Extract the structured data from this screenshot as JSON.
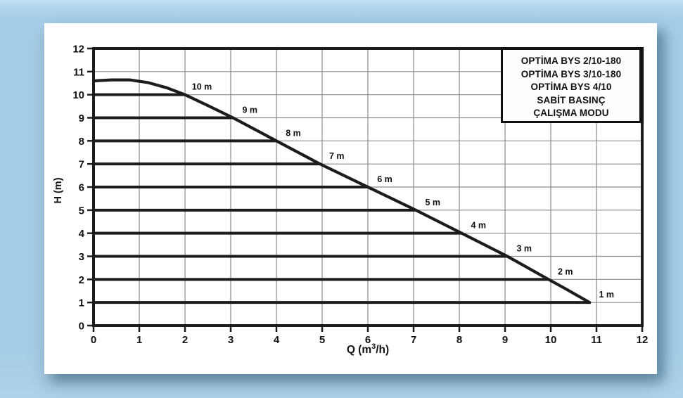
{
  "page": {
    "background_color": "#a6cde7",
    "card_color": "#ffffff"
  },
  "chart_data": {
    "type": "line",
    "title": "",
    "xlabel": "Q (m³/h)",
    "xlabel_parts": {
      "pre": "Q (m",
      "sup": "3",
      "post": "/h)"
    },
    "ylabel": "H (m)",
    "xlim": [
      0,
      12
    ],
    "ylim": [
      0,
      12
    ],
    "x_ticks": [
      0,
      1,
      2,
      3,
      4,
      5,
      6,
      7,
      8,
      9,
      10,
      11,
      12
    ],
    "y_ticks": [
      0,
      1,
      2,
      3,
      4,
      5,
      6,
      7,
      8,
      9,
      10,
      11,
      12
    ],
    "grid": true,
    "legend_position": "top-right",
    "colors": {
      "curve": "#1c1c1c",
      "pressure_line": "#1c1c1c",
      "grid_line": "#8c8c8c",
      "border": "#1c1c1c",
      "text": "#111111"
    },
    "max_head_curve": {
      "name": "maximum head curve",
      "points": [
        [
          0,
          10.6
        ],
        [
          0.4,
          10.64
        ],
        [
          0.8,
          10.64
        ],
        [
          1.2,
          10.52
        ],
        [
          1.6,
          10.3
        ],
        [
          2.0,
          10.0
        ],
        [
          2.5,
          9.53
        ],
        [
          3.05,
          9.0
        ],
        [
          4.0,
          8.0
        ],
        [
          4.95,
          7.0
        ],
        [
          6.0,
          6.0
        ],
        [
          7.05,
          5.0
        ],
        [
          8.05,
          4.0
        ],
        [
          9.05,
          3.0
        ],
        [
          9.95,
          2.0
        ],
        [
          10.3,
          1.62
        ],
        [
          10.85,
          1.0
        ]
      ]
    },
    "constant_pressure_lines": [
      {
        "level": 10,
        "q_end": 2.0,
        "label": "10 m"
      },
      {
        "level": 9,
        "q_end": 3.05,
        "label": "9 m"
      },
      {
        "level": 8,
        "q_end": 4.0,
        "label": "8 m"
      },
      {
        "level": 7,
        "q_end": 4.95,
        "label": "7 m"
      },
      {
        "level": 6,
        "q_end": 6.0,
        "label": "6 m"
      },
      {
        "level": 5,
        "q_end": 7.05,
        "label": "5 m"
      },
      {
        "level": 4,
        "q_end": 8.05,
        "label": "4 m"
      },
      {
        "level": 3,
        "q_end": 9.05,
        "label": "3 m"
      },
      {
        "level": 2,
        "q_end": 9.95,
        "label": "2 m"
      },
      {
        "level": 1,
        "q_end": 10.85,
        "label": "1 m"
      }
    ],
    "legend": {
      "lines": [
        "OPTİMA BYS 2/10-180",
        "OPTİMA BYS 3/10-180",
        "OPTİMA BYS 4/10",
        "SABİT BASINÇ",
        "ÇALIŞMA MODU"
      ]
    }
  }
}
